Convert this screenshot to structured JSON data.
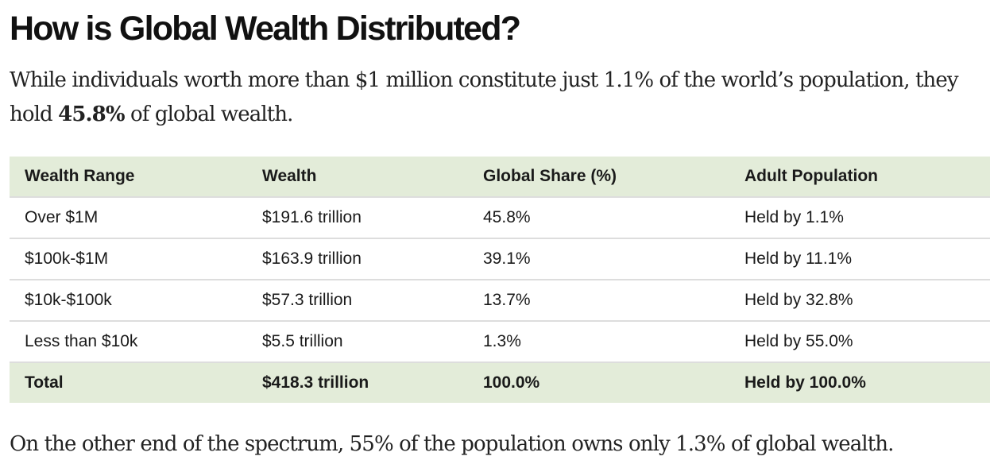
{
  "article": {
    "title": "How is Global Wealth Distributed?",
    "intro_before": "While individuals worth more than $1 million constitute just 1.1% of the world’s population, they hold ",
    "intro_bold": "45.8%",
    "intro_after": " of global wealth.",
    "outro": "On the other end of the spectrum, 55% of the population owns only 1.3% of global wealth."
  },
  "table": {
    "headers": [
      "Wealth Range",
      "Wealth",
      "Global Share (%)",
      "Adult Population"
    ],
    "rows": [
      [
        "Over $1M",
        "$191.6 trillion",
        "45.8%",
        "Held by 1.1%"
      ],
      [
        "$100k-$1M",
        "$163.9 trillion",
        "39.1%",
        "Held by 11.1%"
      ],
      [
        "$10k-$100k",
        "$57.3 trillion",
        "13.7%",
        "Held by 32.8%"
      ],
      [
        "Less than $10k",
        "$5.5 trillion",
        "1.3%",
        "Held by 55.0%"
      ]
    ],
    "total": [
      "Total",
      "$418.3 trillion",
      "100.0%",
      "Held by 100.0%"
    ]
  },
  "colors": {
    "header_background": "#e3ecd9",
    "total_background": "#e3ecd9",
    "row_divider": "#dddddd"
  }
}
